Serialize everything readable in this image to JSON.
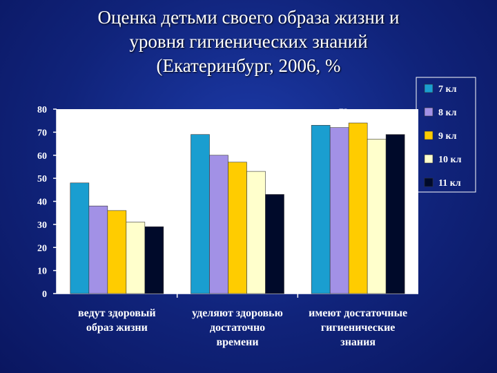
{
  "title_lines": [
    "Оценка детьми своего образа жизни и",
    "уровня гигиенических знаний",
    "(Екатеринбург, 2006, %"
  ],
  "colors": {
    "background": "#12267e",
    "plot_area": "#ffffff",
    "axis": "#ffffff",
    "text": "#ffffff"
  },
  "chart_data": {
    "type": "bar",
    "title": "Оценка детьми своего образа жизни и уровня гигиенических знаний (Екатеринбург, 2006, %",
    "categories": [
      [
        "ведут здоровый",
        "образ жизни"
      ],
      [
        "уделяют здоровью",
        "достаточно",
        "времени"
      ],
      [
        "имеют достаточные",
        "гигиенические",
        "знания"
      ]
    ],
    "series": [
      {
        "name": "7 кл",
        "color": "#1a9ed0",
        "values": [
          48,
          69,
          73
        ]
      },
      {
        "name": "8 кл",
        "color": "#a291e6",
        "values": [
          38,
          60,
          72
        ]
      },
      {
        "name": "9 кл",
        "color": "#ffcc00",
        "values": [
          36,
          57,
          74
        ]
      },
      {
        "name": "10 кл",
        "color": "#ffffcc",
        "values": [
          31,
          53,
          67
        ]
      },
      {
        "name": "11 кл",
        "color": "#000a2a",
        "values": [
          29,
          43,
          69
        ]
      }
    ],
    "ylim": [
      0,
      80
    ],
    "yticks": [
      0,
      10,
      20,
      30,
      40,
      50,
      60,
      70,
      80
    ],
    "xlabel": "",
    "ylabel": "",
    "grid": false,
    "legend_position": "right"
  }
}
